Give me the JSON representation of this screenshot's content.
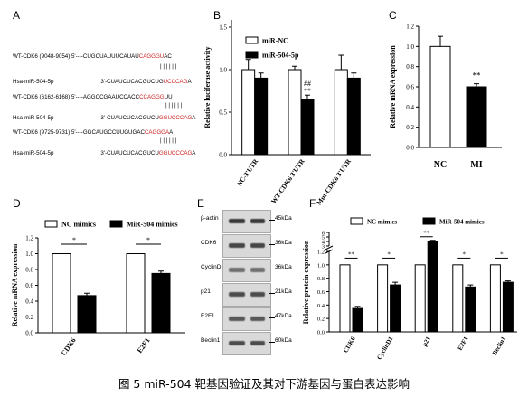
{
  "panel_labels": [
    "A",
    "B",
    "C",
    "D",
    "E",
    "F"
  ],
  "panelA": {
    "rows": [
      {
        "label": "WT-CDK6 (9048-9054) 5'",
        "seq": "----CUGCUAUUUCAUAU",
        "red": "CAGGGU",
        "tail": "AC"
      },
      {
        "label": "Hsa-miR-504-5p",
        "seq": "3'-CUAUCUCACGUCUG",
        "red": "UCCCAG",
        "tail": "A"
      },
      {
        "label": "WT-CDK6 (6162-6168) 5'",
        "seq": "----AGGCCGAAUCCACC",
        "red": "CCAGGG",
        "tail": "UU"
      },
      {
        "label": "Hsa-miR-504-5p",
        "seq": "3'-CUAUCUCACGUCU",
        "red": "GGUCCCAG",
        "tail": "A"
      },
      {
        "label": "WT-CDK6 (9725-9731) 5'",
        "seq": "----GGCAUGCCUUGUGAC",
        "red": "CAGGGA",
        "tail": "A"
      },
      {
        "label": "Hsa-miR-504-5p",
        "seq": "3'-CUAUCUCACGUCU",
        "red": "GGUCCCAG",
        "tail": "A"
      }
    ],
    "pair_marks": "| | | | | |"
  },
  "chart_data": [
    {
      "panel": "B",
      "type": "bar",
      "categories": [
        "NC-3'UTR",
        "WT-CDK6 3'UTR",
        "Mut-CDK6 3'UTR"
      ],
      "series": [
        {
          "name": "miR-NC",
          "values": [
            1.0,
            1.0,
            1.0
          ],
          "errors": [
            0.12,
            0.04,
            0.17
          ],
          "color": "#ffffff"
        },
        {
          "name": "miR-504-5p",
          "values": [
            0.9,
            0.65,
            0.9
          ],
          "errors": [
            0.06,
            0.05,
            0.06
          ],
          "color": "#000000"
        }
      ],
      "annotations": [
        {
          "category": 1,
          "series": 1,
          "text": "##"
        },
        {
          "category": 1,
          "series": 1,
          "text": "**"
        }
      ],
      "ylabel": "Relative luciferase activity",
      "ylim": [
        0.0,
        1.5
      ],
      "yticks": [
        "0.0",
        "0.5",
        "1.0",
        "1.5"
      ],
      "legend": "top"
    },
    {
      "panel": "C",
      "type": "bar",
      "categories": [
        "NC",
        "MI"
      ],
      "values": [
        1.0,
        0.6
      ],
      "errors": [
        0.1,
        0.03
      ],
      "colors": [
        "#ffffff",
        "#000000"
      ],
      "annotations": [
        {
          "category": 1,
          "text": "**"
        }
      ],
      "ylabel": "Relative mRNA expression",
      "ylim": [
        0.0,
        1.2
      ],
      "yticks": [
        "0.0",
        "0.2",
        "0.4",
        "0.6",
        "0.8",
        "1.0",
        "1.2"
      ]
    },
    {
      "panel": "D",
      "type": "bar",
      "categories": [
        "CDK6",
        "E2F1"
      ],
      "series": [
        {
          "name": "NC mimics",
          "values": [
            1.0,
            1.0
          ],
          "errors": [
            0.0,
            0.0
          ],
          "color": "#ffffff"
        },
        {
          "name": "MiR-504 mimics",
          "values": [
            0.47,
            0.75
          ],
          "errors": [
            0.03,
            0.03
          ],
          "color": "#000000"
        }
      ],
      "annotations": [
        {
          "category": 0,
          "text": "*"
        },
        {
          "category": 1,
          "text": "*"
        }
      ],
      "ylabel": "Relative mRNA expression",
      "ylim": [
        0.0,
        1.2
      ],
      "yticks": [
        "0.0",
        "0.2",
        "0.4",
        "0.6",
        "0.8",
        "1.0",
        "1.2"
      ],
      "legend": "top"
    },
    {
      "panel": "F",
      "type": "bar",
      "categories": [
        "CDK6",
        "CyclinD1",
        "p21",
        "E2F1",
        "Beclin1"
      ],
      "series": [
        {
          "name": "NC mimics",
          "values": [
            1.0,
            1.0,
            1.0,
            1.0,
            1.0
          ],
          "errors": [
            0.0,
            0.0,
            0.0,
            0.0,
            0.0
          ],
          "color": "#ffffff"
        },
        {
          "name": "MiR-504 mimics",
          "values": [
            0.35,
            0.7,
            4.1,
            0.67,
            0.74
          ],
          "errors": [
            0.03,
            0.04,
            0.15,
            0.03,
            0.02
          ],
          "color": "#000000"
        }
      ],
      "annotations": [
        {
          "category": 0,
          "text": "**"
        },
        {
          "category": 1,
          "text": "*"
        },
        {
          "category": 2,
          "text": "**"
        },
        {
          "category": 3,
          "text": "*"
        },
        {
          "category": 4,
          "text": "*"
        }
      ],
      "ylabel": "Relative protein expression",
      "ylim": [
        0.0,
        6.0
      ],
      "axis_break": [
        1.2,
        3.0
      ],
      "yticks": [
        "0.0",
        "0.2",
        "0.4",
        "0.6",
        "0.8",
        "1.0",
        "1.2",
        "3",
        "4",
        "5",
        "6"
      ],
      "legend": "top"
    }
  ],
  "panelE": {
    "bands": [
      {
        "protein": "β-actin",
        "size": "45kDa",
        "intensity": 0.85
      },
      {
        "protein": "CDK6",
        "size": "36kDa",
        "intensity": 0.75
      },
      {
        "protein": "CyclinD1",
        "size": "36kDa",
        "intensity": 0.4
      },
      {
        "protein": "p21",
        "size": "21kDa",
        "intensity": 0.7
      },
      {
        "protein": "E2F1",
        "size": "47kDa",
        "intensity": 0.6
      },
      {
        "protein": "Beclin1",
        "size": "60kDa",
        "intensity": 0.7
      }
    ]
  },
  "caption": "图 5 miR-504 靶基因验证及其对下游基因与蛋白表达影响"
}
